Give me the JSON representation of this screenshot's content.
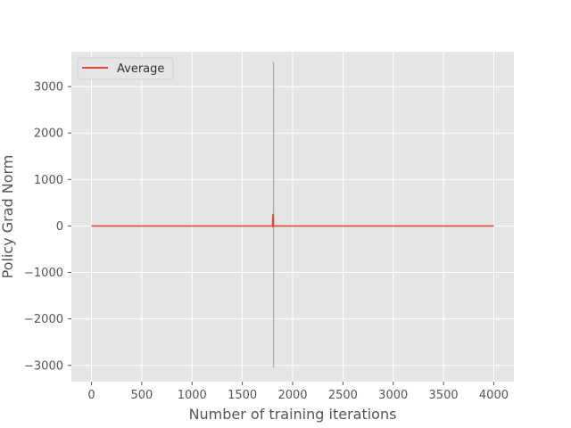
{
  "chart_data": {
    "type": "line",
    "title": "",
    "xlabel": "Number of training iterations",
    "ylabel": "Policy Grad Norm",
    "xlim": [
      -200,
      4200
    ],
    "ylim": [
      -3350,
      3750
    ],
    "xticks": [
      0,
      500,
      1000,
      1500,
      2000,
      2500,
      3000,
      3500,
      4000
    ],
    "yticks": [
      -3000,
      -2000,
      -1000,
      0,
      1000,
      2000,
      3000
    ],
    "grid": true,
    "legend": {
      "position": "top-left",
      "entries": [
        "Average"
      ]
    },
    "series": [
      {
        "name": "Average",
        "color": "#e24a33",
        "x": [
          0,
          1800,
          1805,
          1806,
          1808,
          1810,
          1812,
          4000
        ],
        "y": [
          0,
          0,
          250,
          -20,
          220,
          10,
          0,
          0
        ]
      }
    ],
    "spread_band": {
      "color": "#aaaaaa",
      "x": [
        1810,
        1810
      ],
      "y": [
        -3050,
        3530
      ]
    }
  }
}
